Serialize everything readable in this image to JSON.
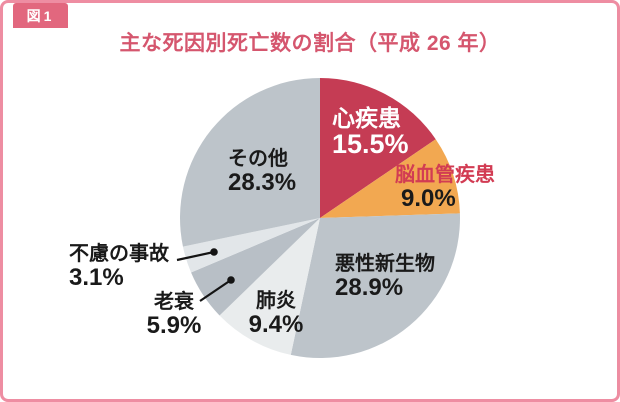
{
  "figure_badge": "図1",
  "title": "主な死因別死亡数の割合（平成 26 年）",
  "colors": {
    "frame_border": "#ee8da2",
    "badge_bg": "#e2677e",
    "title_text": "#d5566e",
    "cerebro_label_text": "#d23c53",
    "heart_slice": "#c53c54",
    "cerebro_slice": "#f2a851",
    "gray_slice": "#bdc4ca",
    "light_slice": "#e9eced"
  },
  "chart_data": {
    "type": "pie",
    "title": "主な死因別死亡数の割合（平成 26 年）",
    "unit": "%",
    "start_angle": "12 o'clock",
    "direction": "clockwise",
    "legend_position": "none (direct labels, two with leader lines)",
    "segments": [
      {
        "label": "心疾患",
        "value": 15.5,
        "pct_text": "15.5%",
        "color": "#c53c54",
        "text_color": "#ffffff"
      },
      {
        "label": "脳血管疾患",
        "value": 9.0,
        "pct_text": "9.0%",
        "color": "#f2a851",
        "text_color": "#d23c53"
      },
      {
        "label": "悪性新生物",
        "value": 28.9,
        "pct_text": "28.9%",
        "color": "#bdc4ca",
        "text_color": "#1a1a1a"
      },
      {
        "label": "肺炎",
        "value": 9.4,
        "pct_text": "9.4%",
        "color": "#e9eced",
        "text_color": "#1a1a1a"
      },
      {
        "label": "老衰",
        "value": 5.9,
        "pct_text": "5.9%",
        "color": "#b8bfc6",
        "text_color": "#1a1a1a"
      },
      {
        "label": "不慮の事故",
        "value": 3.1,
        "pct_text": "3.1%",
        "color": "#e2e6e9",
        "text_color": "#1a1a1a"
      },
      {
        "label": "その他",
        "value": 28.3,
        "pct_text": "28.3%",
        "color": "#bdc4ca",
        "text_color": "#1a1a1a"
      }
    ]
  }
}
